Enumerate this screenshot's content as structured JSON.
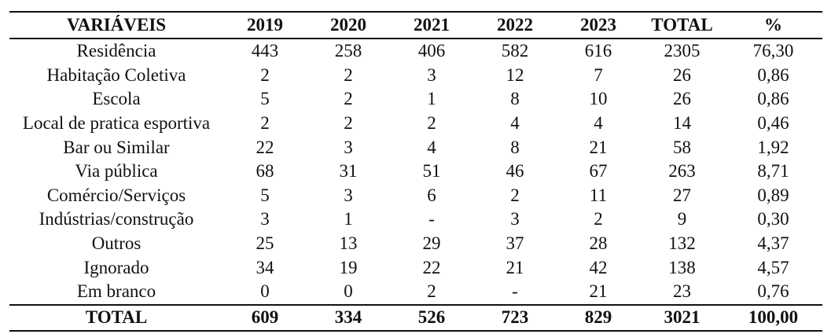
{
  "table": {
    "headers": [
      "VARIÁVEIS",
      "2019",
      "2020",
      "2021",
      "2022",
      "2023",
      "TOTAL",
      "%"
    ],
    "rows": [
      [
        "Residência",
        "443",
        "258",
        "406",
        "582",
        "616",
        "2305",
        "76,30"
      ],
      [
        "Habitação Coletiva",
        "2",
        "2",
        "3",
        "12",
        "7",
        "26",
        "0,86"
      ],
      [
        "Escola",
        "5",
        "2",
        "1",
        "8",
        "10",
        "26",
        "0,86"
      ],
      [
        "Local de pratica esportiva",
        "2",
        "2",
        "2",
        "4",
        "4",
        "14",
        "0,46"
      ],
      [
        "Bar ou Similar",
        "22",
        "3",
        "4",
        "8",
        "21",
        "58",
        "1,92"
      ],
      [
        "Via pública",
        "68",
        "31",
        "51",
        "46",
        "67",
        "263",
        "8,71"
      ],
      [
        "Comércio/Serviços",
        "5",
        "3",
        "6",
        "2",
        "11",
        "27",
        "0,89"
      ],
      [
        "Indústrias/construção",
        "3",
        "1",
        "-",
        "3",
        "2",
        "9",
        "0,30"
      ],
      [
        "Outros",
        "25",
        "13",
        "29",
        "37",
        "28",
        "132",
        "4,37"
      ],
      [
        "Ignorado",
        "34",
        "19",
        "22",
        "21",
        "42",
        "138",
        "4,57"
      ],
      [
        "Em branco",
        "0",
        "0",
        "2",
        "-",
        "21",
        "23",
        "0,76"
      ]
    ],
    "footer": [
      "TOTAL",
      "609",
      "334",
      "526",
      "723",
      "829",
      "3021",
      "100,00"
    ]
  }
}
